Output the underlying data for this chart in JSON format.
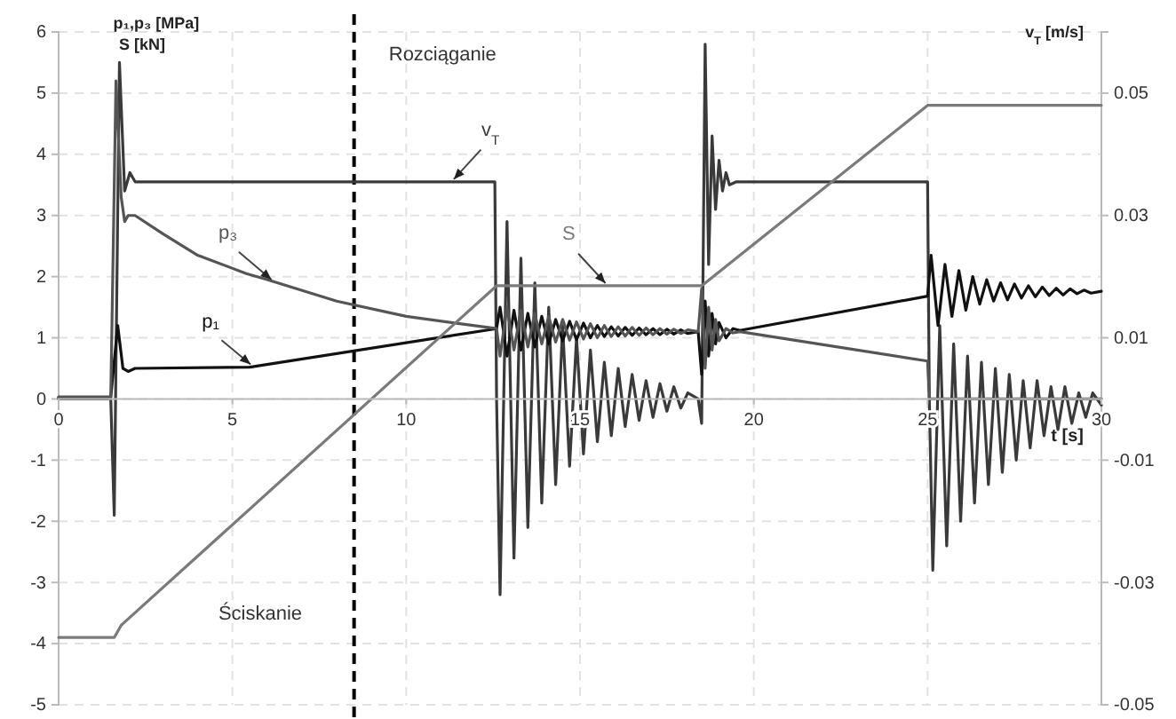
{
  "chart_data": {
    "type": "line",
    "xlabel": "t [s]",
    "ylabel": "p₁,p₃ [MPa]\nS [kN]",
    "y2label": "v$_{T}$ [m/s]",
    "xlim": [
      0,
      30
    ],
    "xticks": [
      0,
      5,
      10,
      15,
      20,
      25,
      30
    ],
    "ylim": [
      -5,
      6
    ],
    "yticks": [
      -5,
      -4,
      -3,
      -2,
      -1,
      0,
      1,
      2,
      3,
      4,
      5,
      6
    ],
    "y2lim": [
      -0.05,
      0.06
    ],
    "y2ticks": [
      -0.05,
      -0.03,
      -0.01,
      0.01,
      0.03,
      0.05
    ],
    "grid": true,
    "line_style": "solid",
    "ref_lines": [
      {
        "axis": "x",
        "value": 8.5,
        "color": "#000000",
        "line_style": "dashed"
      }
    ],
    "annotations": [
      "Rozciąganie",
      "Ściskanie"
    ],
    "series": [
      {
        "name": "v$_{T}$",
        "color": "#3a3a3a",
        "axis": "y2",
        "x": [
          0,
          1.5,
          1.6,
          1.75,
          1.9,
          2.05,
          2.2,
          12.55,
          12.6,
          12.7,
          12.9,
          13.1,
          13.3,
          13.5,
          13.7,
          13.9,
          14.1,
          14.3,
          14.5,
          14.7,
          14.9,
          15.1,
          15.3,
          15.5,
          15.7,
          15.9,
          16.1,
          16.3,
          16.5,
          16.7,
          16.9,
          17.1,
          17.3,
          17.5,
          17.7,
          17.9,
          18.1,
          18.4,
          18.5,
          18.6,
          18.7,
          18.8,
          18.9,
          19.0,
          19.1,
          19.2,
          19.3,
          19.5,
          25.0,
          25.05,
          25.15,
          25.35,
          25.55,
          25.75,
          25.95,
          26.15,
          26.35,
          26.55,
          26.75,
          26.95,
          27.15,
          27.35,
          27.55,
          27.75,
          27.95,
          28.15,
          28.35,
          28.55,
          28.75,
          28.95,
          29.15,
          29.35,
          29.55,
          29.75,
          30
        ],
        "values": [
          0,
          0,
          -0.019,
          0.055,
          0.034,
          0.037,
          0.0355,
          0.0355,
          0,
          -0.032,
          0.029,
          -0.026,
          0.023,
          -0.021,
          0.019,
          -0.017,
          0.015,
          -0.014,
          0.012,
          -0.011,
          0.01,
          -0.009,
          0.008,
          -0.007,
          0.006,
          -0.006,
          0.005,
          -0.0045,
          0.004,
          -0.0035,
          0.003,
          -0.003,
          0.0025,
          -0.002,
          0.002,
          -0.0015,
          0.001,
          0,
          -0.004,
          0.058,
          0.022,
          0.043,
          0.031,
          0.039,
          0.034,
          0.037,
          0.035,
          0.0355,
          0.0355,
          0,
          -0.028,
          0.012,
          -0.024,
          0.009,
          -0.02,
          0.007,
          -0.017,
          0.006,
          -0.014,
          0.005,
          -0.012,
          0.004,
          -0.01,
          0.003,
          -0.008,
          0.003,
          -0.006,
          0.002,
          -0.005,
          0.002,
          -0.004,
          0.001,
          -0.003,
          0.001,
          -0.001
        ]
      },
      {
        "name": "p₁",
        "color": "#111111",
        "x": [
          0,
          1.5,
          1.7,
          1.85,
          2.0,
          2.2,
          5.5,
          12.6,
          12.7,
          12.9,
          13.1,
          13.3,
          13.5,
          13.7,
          13.9,
          14.1,
          14.3,
          14.5,
          14.7,
          14.9,
          15.1,
          15.3,
          15.5,
          15.7,
          15.9,
          16.1,
          16.3,
          16.5,
          16.7,
          16.9,
          17.1,
          17.3,
          17.5,
          17.7,
          17.9,
          18.1,
          18.4,
          18.5,
          18.6,
          18.7,
          18.8,
          18.9,
          19.0,
          19.2,
          19.4,
          19.6,
          25.0,
          25.1,
          25.3,
          25.5,
          25.7,
          25.9,
          26.1,
          26.3,
          26.5,
          26.7,
          26.9,
          27.1,
          27.3,
          27.5,
          27.7,
          27.9,
          28.1,
          28.3,
          28.5,
          28.7,
          28.9,
          29.1,
          29.3,
          29.5,
          29.7,
          30
        ],
        "values": [
          0.03,
          0.03,
          1.2,
          0.5,
          0.45,
          0.5,
          0.52,
          1.15,
          1.5,
          0.7,
          1.45,
          0.8,
          1.4,
          0.85,
          1.35,
          0.9,
          1.3,
          0.95,
          1.27,
          0.97,
          1.24,
          1.0,
          1.2,
          1.02,
          1.18,
          1.03,
          1.17,
          1.04,
          1.16,
          1.05,
          1.15,
          1.05,
          1.14,
          1.06,
          1.13,
          1.07,
          1.1,
          0.4,
          1.6,
          0.7,
          1.4,
          0.9,
          1.25,
          1.0,
          1.15,
          1.12,
          1.68,
          2.35,
          1.2,
          2.2,
          1.35,
          2.1,
          1.45,
          2.0,
          1.55,
          1.95,
          1.6,
          1.9,
          1.62,
          1.88,
          1.65,
          1.85,
          1.67,
          1.83,
          1.69,
          1.81,
          1.7,
          1.8,
          1.72,
          1.78,
          1.73,
          1.76
        ]
      },
      {
        "name": "p₃",
        "color": "#555555",
        "x": [
          0,
          1.5,
          1.65,
          1.8,
          1.9,
          2.0,
          2.2,
          3,
          4,
          5.4,
          6,
          8,
          10,
          12.6,
          12.7,
          12.9,
          13.1,
          13.3,
          13.5,
          13.7,
          13.9,
          14.1,
          14.3,
          14.5,
          14.7,
          14.9,
          15.1,
          15.3,
          15.5,
          15.7,
          15.9,
          16.1,
          16.3,
          16.5,
          16.7,
          16.9,
          17.1,
          17.3,
          17.5,
          17.7,
          17.9,
          18.1,
          18.4,
          18.5,
          18.6,
          18.7,
          18.8,
          18.9,
          19.0,
          19.2,
          19.4,
          19.6,
          25.0,
          25.05,
          30
        ],
        "values": [
          0.03,
          0.03,
          5.2,
          3.3,
          2.9,
          3.0,
          3.0,
          2.7,
          2.35,
          2.05,
          1.95,
          1.6,
          1.35,
          1.15,
          0.7,
          1.5,
          0.8,
          1.45,
          0.85,
          1.4,
          0.9,
          1.35,
          0.93,
          1.3,
          0.96,
          1.26,
          0.98,
          1.23,
          1.0,
          1.2,
          1.02,
          1.18,
          1.03,
          1.17,
          1.04,
          1.16,
          1.05,
          1.15,
          1.06,
          1.14,
          1.07,
          1.13,
          1.1,
          1.8,
          0.5,
          1.5,
          0.8,
          1.3,
          0.95,
          1.15,
          1.08,
          1.1,
          0.62,
          0,
          0
        ]
      },
      {
        "name": "S",
        "color": "#7a7a7a",
        "x": [
          0,
          1.6,
          1.8,
          12.6,
          18.5,
          25.0,
          30
        ],
        "values": [
          -3.9,
          -3.9,
          -3.7,
          1.85,
          1.85,
          4.8,
          4.8
        ]
      }
    ]
  }
}
